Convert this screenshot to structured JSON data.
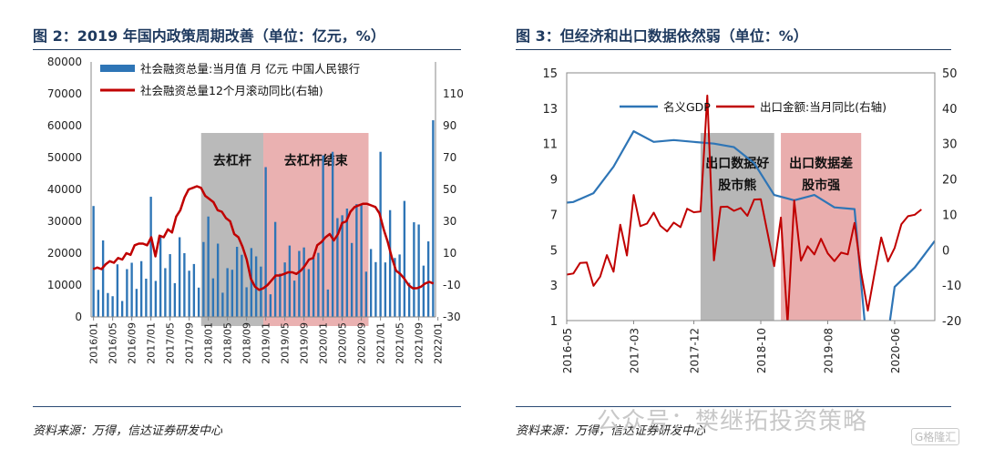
{
  "panels": {
    "left_title": "图 2：2019 年国内政策周期改善（单位：亿元，%）",
    "right_title": "图 3：但经济和出口数据依然弱（单位：%）",
    "left_source": "资料来源：万得，信达证券研发中心",
    "right_source": "资料来源：万得，信达证券研发中心",
    "watermark": "公众号：樊继拓投资策略",
    "watermark_logo": "G格隆汇"
  },
  "chart_data": [
    {
      "type": "bar",
      "title": "",
      "x_tick_labels": [
        "2016/01",
        "2016/05",
        "2016/09",
        "2017/01",
        "2017/05",
        "2017/09",
        "2018/01",
        "2018/05",
        "2018/09",
        "2019/01",
        "2019/05",
        "2019/09",
        "2020/01",
        "2020/05",
        "2020/09",
        "2021/01",
        "2021/05",
        "2021/09",
        "2022/01"
      ],
      "ylim_left": [
        0,
        80000
      ],
      "yticks_left": [
        0,
        10000,
        20000,
        30000,
        40000,
        50000,
        60000,
        70000,
        80000
      ],
      "ylim_right": [
        -30,
        130
      ],
      "yticks_right": [
        -30,
        -10,
        10,
        30,
        50,
        70,
        90,
        110
      ],
      "grid": false,
      "legend": "top-left",
      "shaded_regions": [
        {
          "label": "去杠杆",
          "start": "2017/12",
          "end": "2019/01",
          "color": "#b3b3b3"
        },
        {
          "label": "去杠杆结束",
          "start": "2019/01",
          "end": "2020/11",
          "color": "#e8a9a9"
        }
      ],
      "series": [
        {
          "name": "社会融资总量:当月值 月 亿元 中国人民银行",
          "kind": "bar",
          "axis": "left",
          "color": "#2e75b6",
          "values": [
            34800,
            8500,
            24000,
            7500,
            6500,
            16500,
            5000,
            15000,
            17000,
            8800,
            17500,
            12000,
            37700,
            11300,
            25600,
            15300,
            19700,
            10600,
            25000,
            20000,
            14500,
            16600,
            9200,
            23500,
            31500,
            12100,
            23000,
            7600,
            15300,
            14800,
            22000,
            19500,
            9300,
            21600,
            19000,
            15800,
            47000,
            7100,
            29800,
            13600,
            17100,
            22400,
            11400,
            20700,
            21800,
            15000,
            18600,
            20100,
            50700,
            8600,
            51800,
            31000,
            31900,
            34000,
            23200,
            35400,
            35000,
            14200,
            21300,
            17200,
            51800,
            17100,
            33500,
            18500,
            19600,
            36400,
            10700,
            29700,
            29000,
            16100,
            23700,
            61700
          ]
        },
        {
          "name": "社会融资总量12个月滚动同比(右轴)",
          "kind": "line",
          "axis": "right",
          "color": "#c00000",
          "values": [
            0,
            1,
            0,
            3,
            5,
            4,
            7,
            6,
            10,
            9,
            15,
            16,
            16,
            15,
            20,
            8,
            21,
            20,
            25,
            23,
            33,
            37,
            45,
            50,
            51,
            52,
            51,
            46,
            44,
            42,
            37,
            36,
            32,
            30,
            22,
            20,
            14,
            6,
            -6,
            -11,
            -13,
            -12,
            -10,
            -7,
            -4,
            -4,
            -3,
            -2,
            -2,
            -3,
            -1,
            2,
            6,
            7,
            15,
            17,
            20,
            22,
            18,
            22,
            29,
            30,
            36,
            39,
            40,
            41,
            41,
            40,
            39,
            35,
            25,
            17,
            7,
            -1,
            -3,
            -6,
            -10,
            -12,
            -12,
            -11,
            -9,
            -8,
            -9
          ]
        }
      ]
    },
    {
      "type": "line",
      "title": "",
      "x_tick_labels": [
        "2016-05",
        "2017-03",
        "2017-12",
        "2018-10",
        "2019-08",
        "2020-06"
      ],
      "ylim_left": [
        1,
        15
      ],
      "yticks_left": [
        1,
        3,
        5,
        7,
        9,
        11,
        13,
        15
      ],
      "ylim_right": [
        -20,
        50
      ],
      "yticks_right": [
        -20,
        -10,
        0,
        10,
        20,
        30,
        40,
        50
      ],
      "grid": false,
      "legend": "top",
      "shaded_regions": [
        {
          "label": "出口数据好\n股市熊",
          "start": "2018-01",
          "end": "2018-12",
          "color": "#b3b3b3"
        },
        {
          "label": "出口数据差\n股市强",
          "start": "2019-01",
          "end": "2020-01",
          "color": "#e8a9a9"
        }
      ],
      "series": [
        {
          "name": "名义GDP",
          "axis": "left",
          "color": "#2e75b6",
          "x": [
            "2016-03",
            "2016-06",
            "2016-09",
            "2016-12",
            "2017-03",
            "2017-06",
            "2017-09",
            "2017-12",
            "2018-03",
            "2018-06",
            "2018-09",
            "2018-12",
            "2019-03",
            "2019-06",
            "2019-09",
            "2019-12",
            "2020-03",
            "2020-06",
            "2020-09",
            "2020-12"
          ],
          "values": [
            7.6,
            7.7,
            8.2,
            9.7,
            11.7,
            11.1,
            11.2,
            11.1,
            11.0,
            10.8,
            9.9,
            8.1,
            7.8,
            8.1,
            7.4,
            7.3,
            -5.3,
            2.9,
            4.0,
            5.5
          ]
        },
        {
          "name": "出口金额:当月同比(右轴)",
          "axis": "right",
          "color": "#c00000",
          "x": [
            "2016-03",
            "2016-04",
            "2016-05",
            "2016-06",
            "2016-07",
            "2016-08",
            "2016-09",
            "2016-10",
            "2016-11",
            "2016-12",
            "2017-01",
            "2017-02",
            "2017-03",
            "2017-04",
            "2017-05",
            "2017-06",
            "2017-07",
            "2017-08",
            "2017-09",
            "2017-10",
            "2017-11",
            "2017-12",
            "2018-01",
            "2018-02",
            "2018-03",
            "2018-04",
            "2018-05",
            "2018-06",
            "2018-07",
            "2018-08",
            "2018-09",
            "2018-10",
            "2018-11",
            "2018-12",
            "2019-01",
            "2019-02",
            "2019-03",
            "2019-04",
            "2019-05",
            "2019-06",
            "2019-07",
            "2019-08",
            "2019-09",
            "2019-10",
            "2019-11",
            "2019-12",
            "2020-01",
            "2020-02",
            "2020-03",
            "2020-04",
            "2020-05",
            "2020-06",
            "2020-07",
            "2020-08",
            "2020-09",
            "2020-10"
          ],
          "values": [
            -6.5,
            -7.4,
            -7.0,
            -6.7,
            -3.7,
            -3.6,
            -10.2,
            -7.6,
            -1.5,
            -6.2,
            7.1,
            -1.6,
            15.5,
            6.7,
            7.4,
            10.5,
            6.8,
            5.2,
            7.7,
            6.4,
            11.6,
            10.6,
            10.8,
            43.6,
            -3.0,
            12.1,
            12.2,
            11.0,
            11.8,
            9.6,
            14.2,
            14.3,
            4.8,
            -4.6,
            9.1,
            -20.8,
            13.9,
            -3.1,
            1.0,
            -1.3,
            3.1,
            -1.0,
            -3.2,
            -0.8,
            -1.3,
            7.6,
            -6.5,
            -17.2,
            -6.6,
            3.5,
            -3.3,
            0.5,
            7.2,
            9.5,
            9.9,
            11.4
          ]
        }
      ]
    }
  ]
}
